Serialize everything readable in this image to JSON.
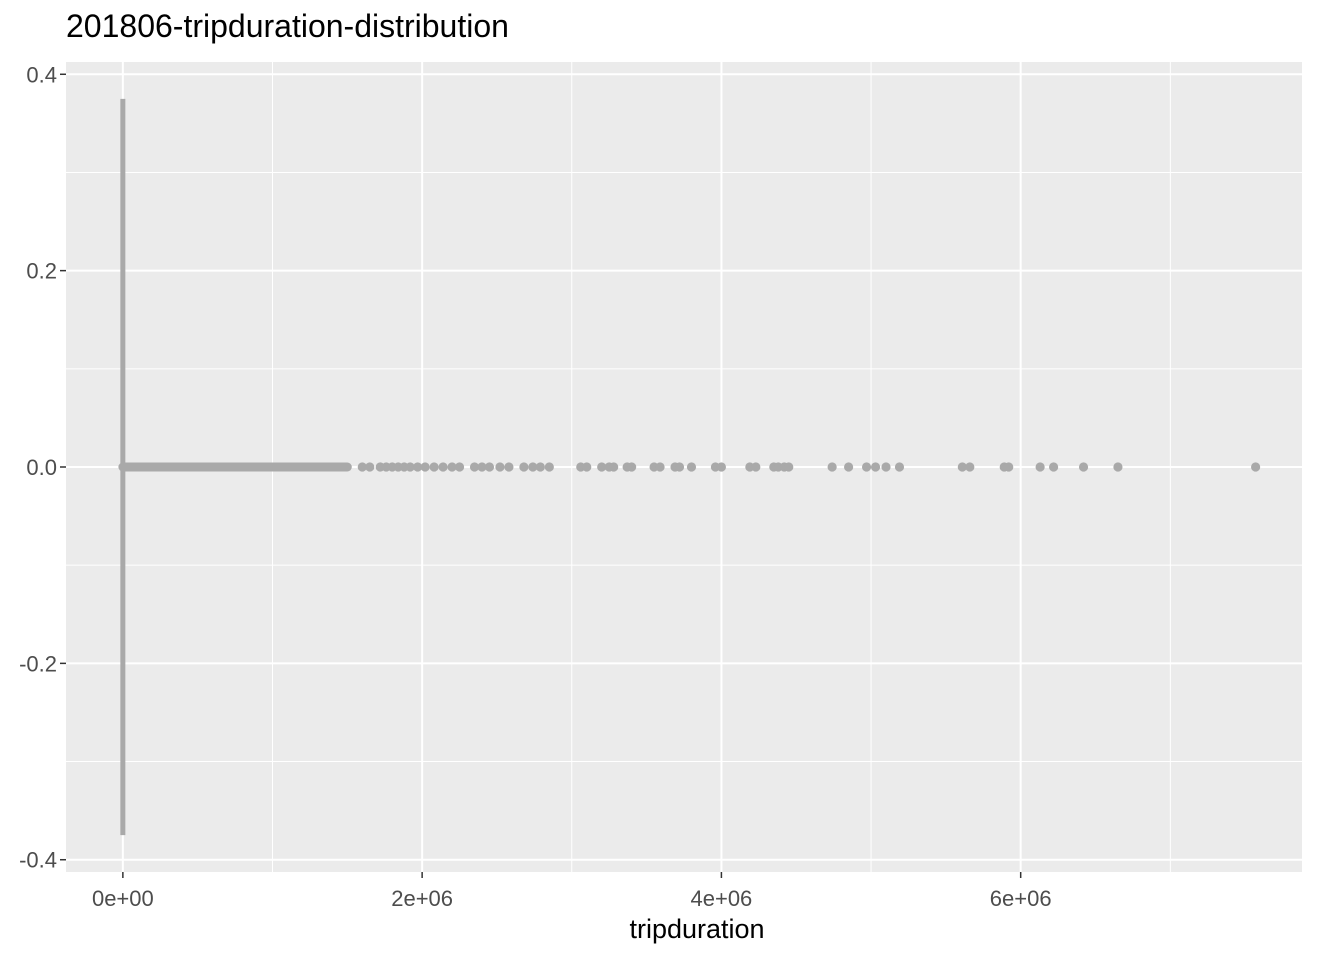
{
  "chart_data": {
    "type": "scatter",
    "title": "201806-tripduration-distribution",
    "xlabel": "tripduration",
    "ylabel": "",
    "xlim": [
      -380000,
      7880000
    ],
    "ylim": [
      -0.4125,
      0.4125
    ],
    "x_ticks": [
      {
        "value": 0,
        "label": "0e+00"
      },
      {
        "value": 2000000,
        "label": "2e+06"
      },
      {
        "value": 4000000,
        "label": "4e+06"
      },
      {
        "value": 6000000,
        "label": "6e+06"
      }
    ],
    "x_minor_ticks": [
      1000000,
      3000000,
      5000000,
      7000000
    ],
    "y_ticks": [
      {
        "value": 0.4,
        "label": "0.4"
      },
      {
        "value": 0.2,
        "label": "0.2"
      },
      {
        "value": 0.0,
        "label": "0.0"
      },
      {
        "value": -0.2,
        "label": "-0.2"
      },
      {
        "value": -0.4,
        "label": "-0.4"
      }
    ],
    "y_minor_ticks": [
      0.3,
      0.1,
      -0.1,
      -0.3
    ],
    "grid": true,
    "colors": {
      "panel": "#ebebeb",
      "grid": "#ffffff",
      "points": "#a9a9a9"
    },
    "vertical_bar": {
      "x": 0,
      "y_range": [
        -0.375,
        0.375
      ]
    },
    "dense_run": {
      "x_range": [
        0,
        1500000
      ],
      "y": 0
    },
    "points": [
      {
        "x": 1600000,
        "y": 0
      },
      {
        "x": 1650000,
        "y": 0
      },
      {
        "x": 1720000,
        "y": 0
      },
      {
        "x": 1760000,
        "y": 0
      },
      {
        "x": 1800000,
        "y": 0
      },
      {
        "x": 1840000,
        "y": 0
      },
      {
        "x": 1880000,
        "y": 0
      },
      {
        "x": 1920000,
        "y": 0
      },
      {
        "x": 1970000,
        "y": 0
      },
      {
        "x": 2020000,
        "y": 0
      },
      {
        "x": 2080000,
        "y": 0
      },
      {
        "x": 2140000,
        "y": 0
      },
      {
        "x": 2200000,
        "y": 0
      },
      {
        "x": 2250000,
        "y": 0
      },
      {
        "x": 2350000,
        "y": 0
      },
      {
        "x": 2400000,
        "y": 0
      },
      {
        "x": 2450000,
        "y": 0
      },
      {
        "x": 2520000,
        "y": 0
      },
      {
        "x": 2580000,
        "y": 0
      },
      {
        "x": 2680000,
        "y": 0
      },
      {
        "x": 2740000,
        "y": 0
      },
      {
        "x": 2790000,
        "y": 0
      },
      {
        "x": 2850000,
        "y": 0
      },
      {
        "x": 3060000,
        "y": 0
      },
      {
        "x": 3100000,
        "y": 0
      },
      {
        "x": 3200000,
        "y": 0
      },
      {
        "x": 3250000,
        "y": 0
      },
      {
        "x": 3280000,
        "y": 0
      },
      {
        "x": 3370000,
        "y": 0
      },
      {
        "x": 3400000,
        "y": 0
      },
      {
        "x": 3550000,
        "y": 0
      },
      {
        "x": 3590000,
        "y": 0
      },
      {
        "x": 3690000,
        "y": 0
      },
      {
        "x": 3720000,
        "y": 0
      },
      {
        "x": 3800000,
        "y": 0
      },
      {
        "x": 3960000,
        "y": 0
      },
      {
        "x": 4000000,
        "y": 0
      },
      {
        "x": 4190000,
        "y": 0
      },
      {
        "x": 4230000,
        "y": 0
      },
      {
        "x": 4350000,
        "y": 0
      },
      {
        "x": 4380000,
        "y": 0
      },
      {
        "x": 4420000,
        "y": 0
      },
      {
        "x": 4450000,
        "y": 0
      },
      {
        "x": 4740000,
        "y": 0
      },
      {
        "x": 4850000,
        "y": 0
      },
      {
        "x": 4970000,
        "y": 0
      },
      {
        "x": 5030000,
        "y": 0
      },
      {
        "x": 5100000,
        "y": 0
      },
      {
        "x": 5190000,
        "y": 0
      },
      {
        "x": 5610000,
        "y": 0
      },
      {
        "x": 5660000,
        "y": 0
      },
      {
        "x": 5890000,
        "y": 0
      },
      {
        "x": 5920000,
        "y": 0
      },
      {
        "x": 6130000,
        "y": 0
      },
      {
        "x": 6220000,
        "y": 0
      },
      {
        "x": 6420000,
        "y": 0
      },
      {
        "x": 6650000,
        "y": 0
      },
      {
        "x": 7570000,
        "y": 0
      }
    ]
  }
}
